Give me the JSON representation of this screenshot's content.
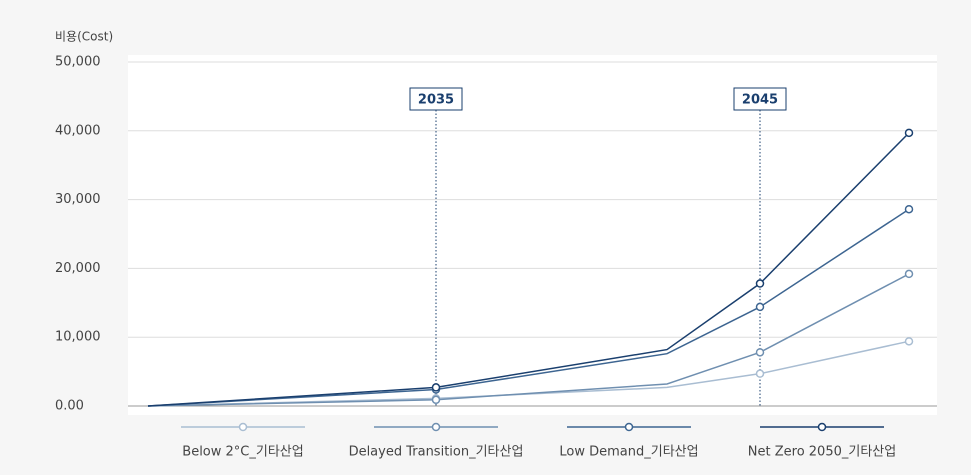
{
  "chart_data": {
    "type": "line",
    "y_axis_label": "비용(Cost)",
    "categories": [
      null,
      null,
      null,
      null,
      null
    ],
    "annotations": [
      {
        "text": "2035"
      },
      {
        "text": "2045"
      }
    ],
    "series": [
      {
        "name": "Below 2°C_기타산업",
        "color": "#a9bdd2",
        "values": [
          0,
          1100,
          2700,
          4700,
          9400
        ]
      },
      {
        "name": "Delayed Transition_기타산업",
        "color": "#6f8fb0",
        "values": [
          0,
          900,
          3200,
          7800,
          19200
        ]
      },
      {
        "name": "Low Demand_기타산업",
        "color": "#3d6591",
        "values": [
          0,
          2400,
          7600,
          14400,
          28600
        ]
      },
      {
        "name": "Net Zero 2050_기타산업",
        "color": "#1a3f6e",
        "values": [
          0,
          2700,
          8200,
          17800,
          39700
        ]
      }
    ],
    "ylim": [
      0,
      50000
    ],
    "yticks": [
      {
        "value": 0,
        "label": "0.00"
      },
      {
        "value": 10000,
        "label": "10,000"
      },
      {
        "value": 20000,
        "label": "20,000"
      },
      {
        "value": 30000,
        "label": "30,000"
      },
      {
        "value": 40000,
        "label": "40,000"
      },
      {
        "value": 50000,
        "label": "50,000"
      }
    ],
    "grid": true
  }
}
